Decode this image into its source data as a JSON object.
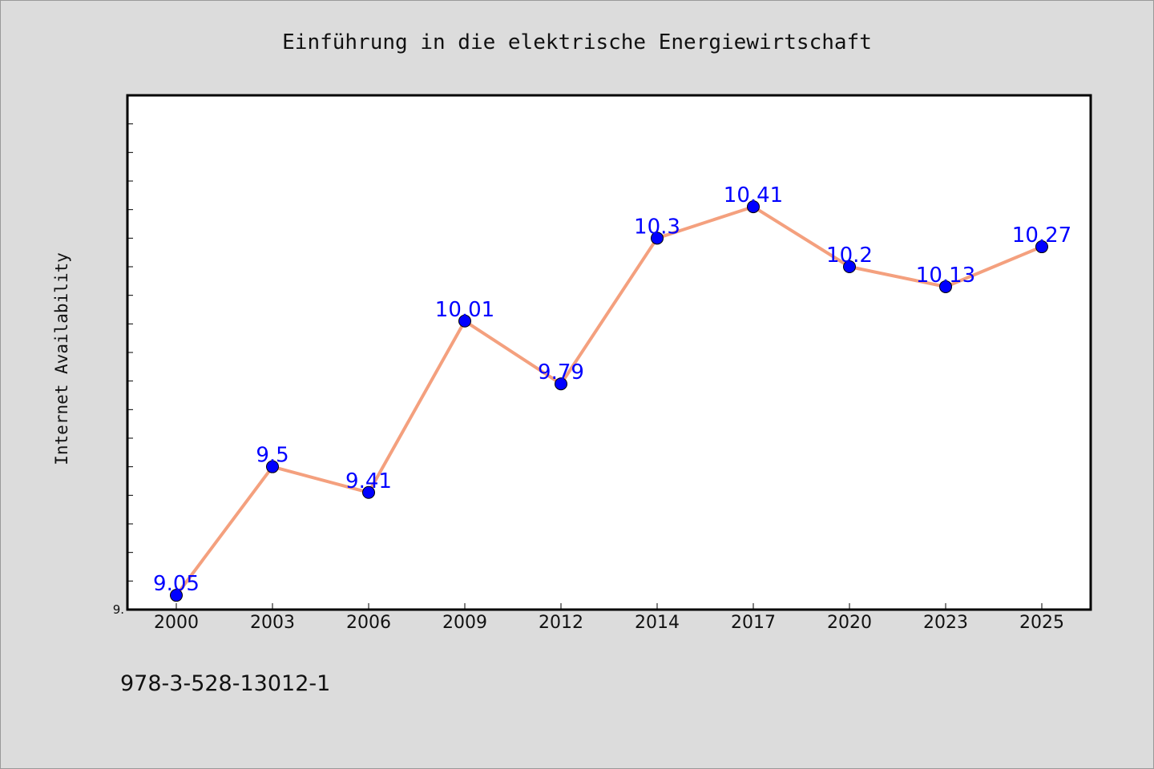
{
  "chart_data": {
    "type": "line",
    "title": "Einführung in die elektrische Energiewirtschaft",
    "xlabel": "",
    "ylabel": "Internet Availability",
    "categories": [
      "2000",
      "2003",
      "2006",
      "2009",
      "2012",
      "2014",
      "2017",
      "2020",
      "2023",
      "2025"
    ],
    "series": [
      {
        "values": [
          9.05,
          9.5,
          9.41,
          10.01,
          9.79,
          10.3,
          10.41,
          10.2,
          10.13,
          10.27
        ],
        "labels": [
          "9.05",
          "9.5",
          "9.41",
          "10.01",
          "9.79",
          "10.3",
          "10.41",
          "10.2",
          "10.13",
          "10.27"
        ]
      }
    ],
    "ylim": [
      9.0,
      10.8
    ],
    "y_tick_labels": [
      "9."
    ],
    "line_color": "#f4a07e",
    "marker_color": "#0000ff",
    "label_color": "#0000ff",
    "grid": false,
    "legend": "none"
  },
  "footer": {
    "isbn": "978-3-528-13012-1"
  }
}
